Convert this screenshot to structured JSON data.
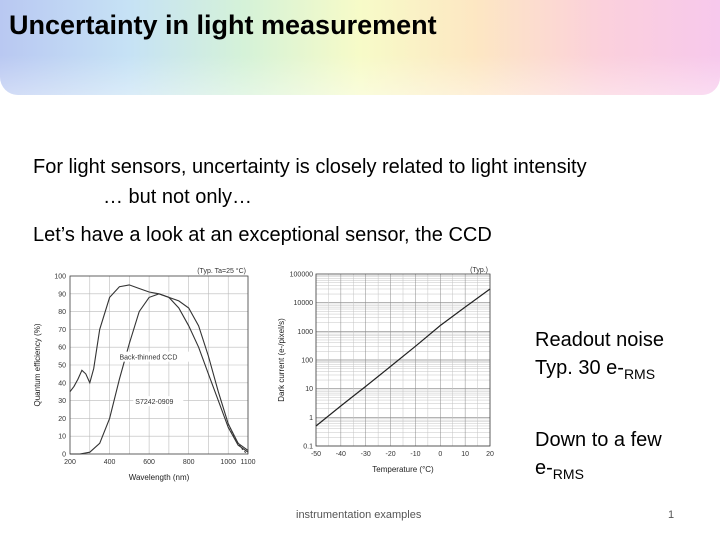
{
  "slide": {
    "title": "Uncertainty in light measurement",
    "bullets": [
      "For light sensors, uncertainty is closely related to light intensity",
      "… but not only…",
      "Let’s have a look at an exceptional sensor, the CCD"
    ],
    "readout_note": {
      "line1": "Readout noise",
      "line2_prefix": "Typ. 30 e-",
      "line2_sub": "RMS"
    },
    "down_note": {
      "line1": "Down to a few",
      "line2_prefix": "e-",
      "line2_sub": "RMS"
    },
    "footer": "instrumentation examples",
    "page_number": "1"
  },
  "chart_data": [
    {
      "type": "line",
      "title": "",
      "annotation": "(Typ. Ta=25 °C)",
      "xlabel": "Wavelength (nm)",
      "ylabel": "Quantum efficiency (%)",
      "xlim": [
        200,
        1100
      ],
      "ylim": [
        0,
        100
      ],
      "x_ticks": [
        "200",
        "400",
        "600",
        "800",
        "1000",
        "1100"
      ],
      "y_ticks": [
        "0",
        "10",
        "20",
        "30",
        "40",
        "50",
        "60",
        "70",
        "80",
        "90",
        "100"
      ],
      "series": [
        {
          "name": "Back-thinned CCD",
          "x": [
            200,
            220,
            240,
            260,
            280,
            300,
            320,
            350,
            400,
            450,
            500,
            550,
            600,
            650,
            700,
            750,
            800,
            850,
            900,
            950,
            1000,
            1050,
            1100
          ],
          "y": [
            35,
            38,
            42,
            47,
            45,
            40,
            48,
            70,
            88,
            94,
            95,
            93,
            91,
            90,
            88,
            86,
            82,
            72,
            55,
            35,
            17,
            6,
            2
          ]
        },
        {
          "name": "S7242-0909",
          "x": [
            200,
            250,
            300,
            350,
            400,
            450,
            500,
            550,
            600,
            650,
            700,
            750,
            800,
            850,
            900,
            950,
            1000,
            1050,
            1100
          ],
          "y": [
            0,
            0,
            1,
            6,
            20,
            42,
            62,
            80,
            88,
            90,
            88,
            82,
            72,
            60,
            45,
            30,
            15,
            5,
            1
          ]
        }
      ]
    },
    {
      "type": "line",
      "title": "",
      "annotation": "(Typ.)",
      "xlabel": "Temperature (°C)",
      "ylabel": "Dark current (e-/pixel/s)",
      "scale_y": "log",
      "xlim": [
        -50,
        20
      ],
      "ylim": [
        0.1,
        100000
      ],
      "x_ticks": [
        "-50",
        "-40",
        "-30",
        "-20",
        "-10",
        "0",
        "10",
        "20"
      ],
      "y_ticks": [
        "0.1",
        "1",
        "10",
        "100",
        "1000",
        "10000",
        "100000"
      ],
      "series": [
        {
          "x": [
            -50,
            -40,
            -30,
            -20,
            -10,
            0,
            10,
            20
          ],
          "y": [
            0.5,
            2.5,
            12,
            60,
            300,
            1600,
            7000,
            30000
          ]
        }
      ]
    }
  ]
}
